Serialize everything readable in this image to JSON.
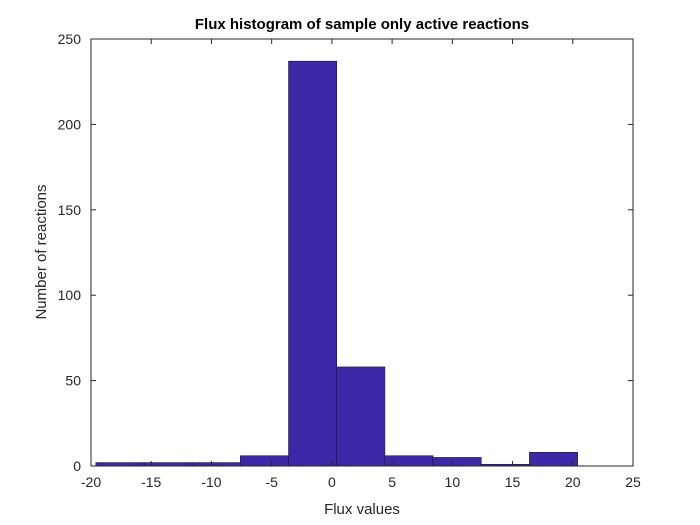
{
  "chart_data": {
    "type": "bar",
    "title": "Flux histogram of sample only active reactions",
    "xlabel": "Flux values",
    "ylabel": "Number of reactions",
    "xlim": [
      -20,
      25
    ],
    "ylim": [
      0,
      250
    ],
    "xticks": [
      -20,
      -15,
      -10,
      -5,
      0,
      5,
      10,
      15,
      20,
      25
    ],
    "yticks": [
      0,
      50,
      100,
      150,
      200,
      250
    ],
    "bins": [
      {
        "x0": -19.6,
        "x1": -15.6,
        "count": 2
      },
      {
        "x0": -15.6,
        "x1": -11.6,
        "count": 2
      },
      {
        "x0": -11.6,
        "x1": -7.6,
        "count": 2
      },
      {
        "x0": -7.6,
        "x1": -3.6,
        "count": 6
      },
      {
        "x0": -3.6,
        "x1": 0.4,
        "count": 237
      },
      {
        "x0": 0.4,
        "x1": 4.4,
        "count": 58
      },
      {
        "x0": 4.4,
        "x1": 8.4,
        "count": 6
      },
      {
        "x0": 8.4,
        "x1": 12.4,
        "count": 5
      },
      {
        "x0": 12.4,
        "x1": 16.4,
        "count": 1
      },
      {
        "x0": 16.4,
        "x1": 20.4,
        "count": 8
      }
    ],
    "bar_color": "#3d28a8",
    "grid": false
  }
}
